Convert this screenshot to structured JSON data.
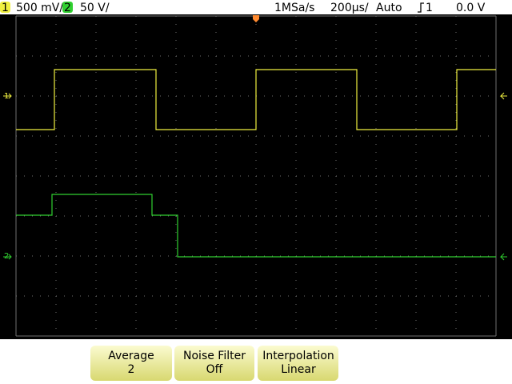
{
  "status": {
    "ch1": {
      "label": "1",
      "scale": "500 mV/"
    },
    "ch2": {
      "label": "2",
      "scale": "50 V/"
    },
    "sample_rate": "1MSa/s",
    "timebase": "200µs/",
    "mode": "Auto",
    "trigger": {
      "source": "1",
      "level": "0.0 V"
    }
  },
  "markers": {
    "ch1": "1",
    "ch2": "2"
  },
  "softkeys": [
    {
      "label": "Average",
      "value": "2"
    },
    {
      "label": "Noise Filter",
      "value": "Off"
    },
    {
      "label": "Interpolation",
      "value": "Linear"
    }
  ]
}
